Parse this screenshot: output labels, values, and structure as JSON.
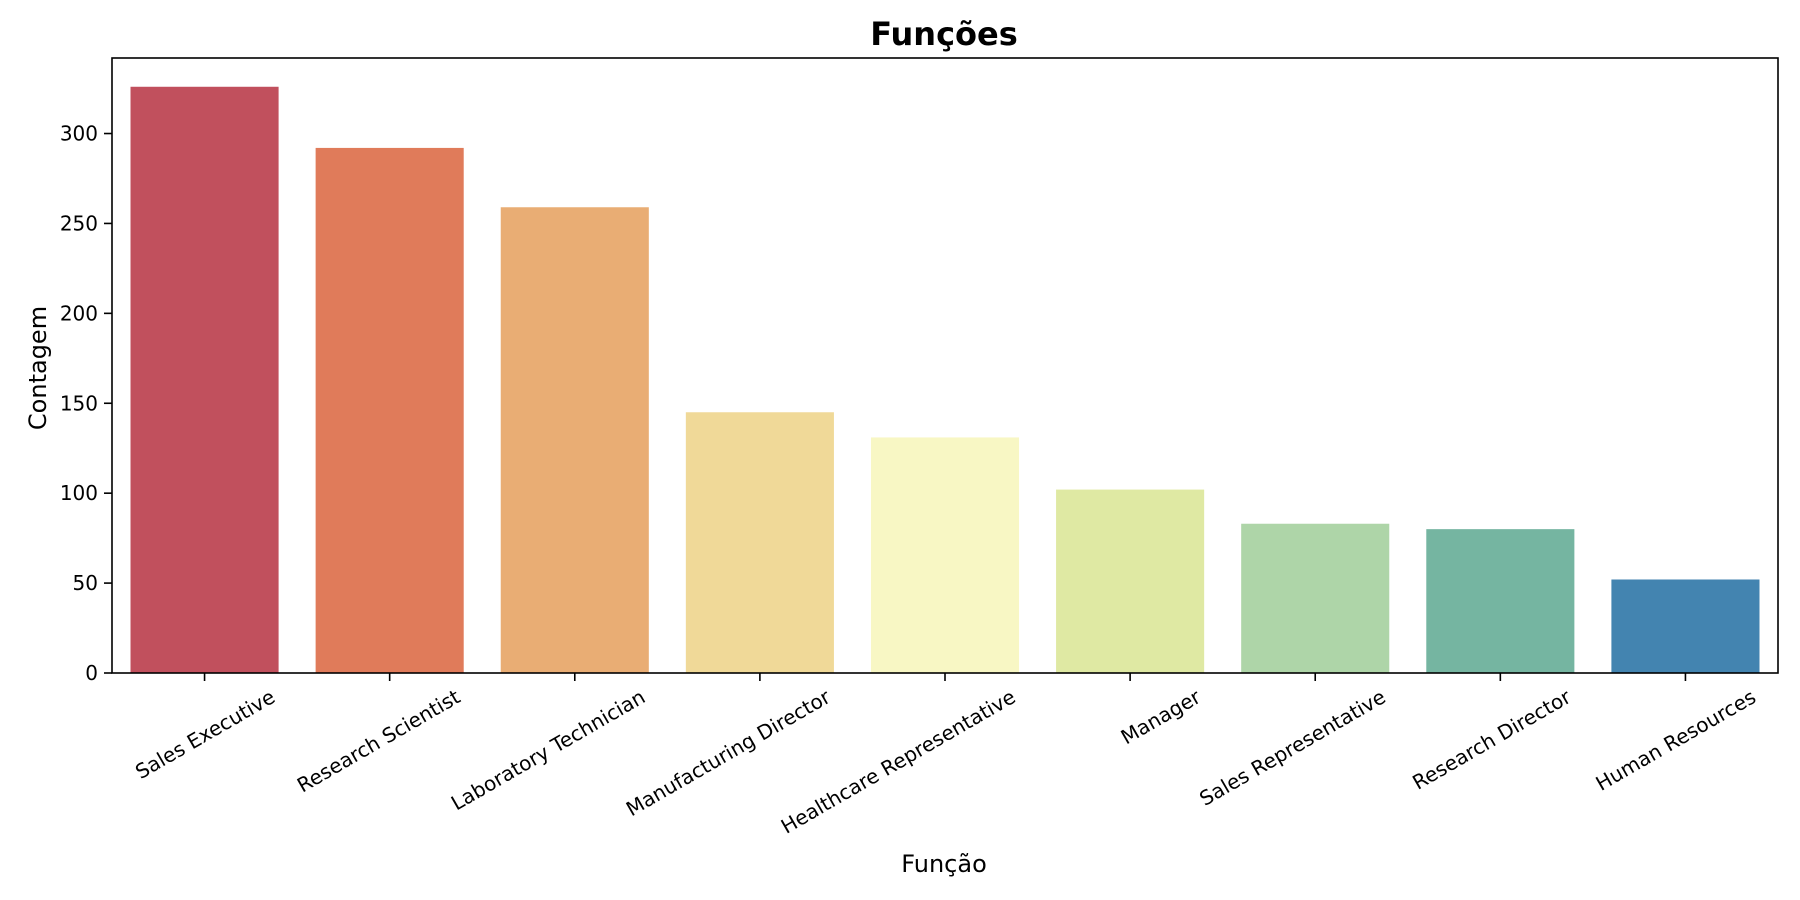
{
  "chart_data": {
    "type": "bar",
    "title": "Funções",
    "xlabel": "Função",
    "ylabel": "Contagem",
    "categories": [
      "Sales Executive",
      "Research Scientist",
      "Laboratory Technician",
      "Manufacturing Director",
      "Healthcare Representative",
      "Manager",
      "Sales Representative",
      "Research Director",
      "Human Resources"
    ],
    "values": [
      326,
      292,
      259,
      145,
      131,
      102,
      83,
      80,
      52
    ],
    "colors": [
      "#c1505d",
      "#e07b5a",
      "#e9ad74",
      "#f0d998",
      "#f8f7c4",
      "#dfe9a3",
      "#aed5a8",
      "#75b5a1",
      "#4384b0"
    ],
    "ylim": [
      0,
      342
    ],
    "yticks": [
      0,
      50,
      100,
      150,
      200,
      250,
      300
    ],
    "grid": false,
    "legend": "none"
  }
}
